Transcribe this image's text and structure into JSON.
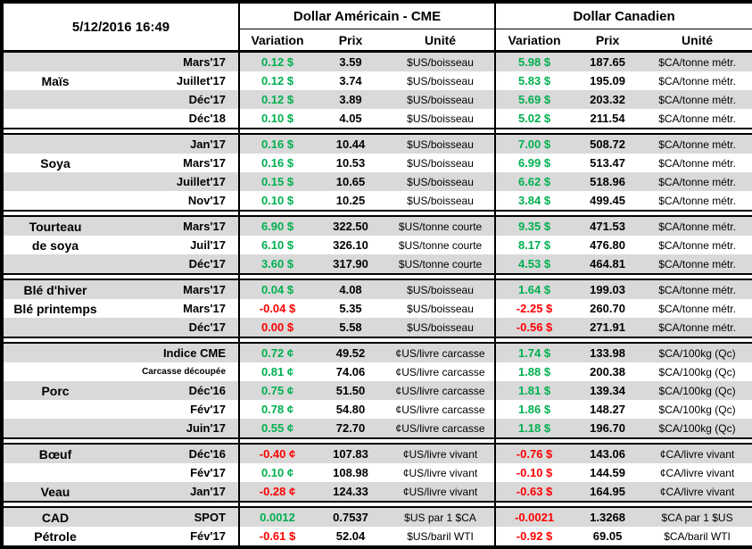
{
  "header": {
    "timestamp": "5/12/2016 16:49",
    "us_group_title": "Dollar Américain - CME",
    "ca_group_title": "Dollar Canadien",
    "columns": [
      "Variation",
      "Prix",
      "Unité"
    ]
  },
  "colors": {
    "positive": "#00B050",
    "negative": "#FF0000",
    "row_stripe": "#D9D9D9",
    "border": "#000000"
  },
  "groups": [
    {
      "commodity": "Maïs",
      "rows": [
        {
          "name": "",
          "month": "Mars'17",
          "us_variation": "0.12 $",
          "us_trend": "pos",
          "us_price": "3.59",
          "us_unit": "$US/boisseau",
          "ca_variation": "5.98 $",
          "ca_trend": "pos",
          "ca_price": "187.65",
          "ca_unit": "$CA/tonne métr."
        },
        {
          "name": "Maïs",
          "month": "Juillet'17",
          "us_variation": "0.12 $",
          "us_trend": "pos",
          "us_price": "3.74",
          "us_unit": "$US/boisseau",
          "ca_variation": "5.83 $",
          "ca_trend": "pos",
          "ca_price": "195.09",
          "ca_unit": "$CA/tonne métr."
        },
        {
          "name": "",
          "month": "Déc'17",
          "us_variation": "0.12 $",
          "us_trend": "pos",
          "us_price": "3.89",
          "us_unit": "$US/boisseau",
          "ca_variation": "5.69 $",
          "ca_trend": "pos",
          "ca_price": "203.32",
          "ca_unit": "$CA/tonne métr."
        },
        {
          "name": "",
          "month": "Déc'18",
          "us_variation": "0.10 $",
          "us_trend": "pos",
          "us_price": "4.05",
          "us_unit": "$US/boisseau",
          "ca_variation": "5.02 $",
          "ca_trend": "pos",
          "ca_price": "211.54",
          "ca_unit": "$CA/tonne métr."
        }
      ]
    },
    {
      "commodity": "Soya",
      "rows": [
        {
          "name": "",
          "month": "Jan'17",
          "us_variation": "0.16 $",
          "us_trend": "pos",
          "us_price": "10.44",
          "us_unit": "$US/boisseau",
          "ca_variation": "7.00 $",
          "ca_trend": "pos",
          "ca_price": "508.72",
          "ca_unit": "$CA/tonne métr."
        },
        {
          "name": "Soya",
          "month": "Mars'17",
          "us_variation": "0.16 $",
          "us_trend": "pos",
          "us_price": "10.53",
          "us_unit": "$US/boisseau",
          "ca_variation": "6.99 $",
          "ca_trend": "pos",
          "ca_price": "513.47",
          "ca_unit": "$CA/tonne métr."
        },
        {
          "name": "",
          "month": "Juillet'17",
          "us_variation": "0.15 $",
          "us_trend": "pos",
          "us_price": "10.65",
          "us_unit": "$US/boisseau",
          "ca_variation": "6.62 $",
          "ca_trend": "pos",
          "ca_price": "518.96",
          "ca_unit": "$CA/tonne métr."
        },
        {
          "name": "",
          "month": "Nov'17",
          "us_variation": "0.10 $",
          "us_trend": "pos",
          "us_price": "10.25",
          "us_unit": "$US/boisseau",
          "ca_variation": "3.84 $",
          "ca_trend": "pos",
          "ca_price": "499.45",
          "ca_unit": "$CA/tonne métr."
        }
      ]
    },
    {
      "commodity": "Tourteau de soya",
      "rows": [
        {
          "name": "Tourteau",
          "month": "Mars'17",
          "us_variation": "6.90 $",
          "us_trend": "pos",
          "us_price": "322.50",
          "us_unit": "$US/tonne courte",
          "ca_variation": "9.35 $",
          "ca_trend": "pos",
          "ca_price": "471.53",
          "ca_unit": "$CA/tonne métr."
        },
        {
          "name": "de soya",
          "month": "Juil'17",
          "us_variation": "6.10 $",
          "us_trend": "pos",
          "us_price": "326.10",
          "us_unit": "$US/tonne courte",
          "ca_variation": "8.17 $",
          "ca_trend": "pos",
          "ca_price": "476.80",
          "ca_unit": "$CA/tonne métr."
        },
        {
          "name": "",
          "month": "Déc'17",
          "us_variation": "3.60 $",
          "us_trend": "pos",
          "us_price": "317.90",
          "us_unit": "$US/tonne courte",
          "ca_variation": "4.53 $",
          "ca_trend": "pos",
          "ca_price": "464.81",
          "ca_unit": "$CA/tonne métr."
        }
      ]
    },
    {
      "commodity": "Blé",
      "rows": [
        {
          "name": "Blé d'hiver",
          "month": "Mars'17",
          "us_variation": "0.04 $",
          "us_trend": "pos",
          "us_price": "4.08",
          "us_unit": "$US/boisseau",
          "ca_variation": "1.64 $",
          "ca_trend": "pos",
          "ca_price": "199.03",
          "ca_unit": "$CA/tonne métr."
        },
        {
          "name": "Blé printemps",
          "month": "Mars'17",
          "us_variation": "-0.04 $",
          "us_trend": "neg",
          "us_price": "5.35",
          "us_unit": "$US/boisseau",
          "ca_variation": "-2.25 $",
          "ca_trend": "neg",
          "ca_price": "260.70",
          "ca_unit": "$CA/tonne métr."
        },
        {
          "name": "",
          "month": "Déc'17",
          "us_variation": "0.00 $",
          "us_trend": "neg",
          "us_price": "5.58",
          "us_unit": "$US/boisseau",
          "ca_variation": "-0.56 $",
          "ca_trend": "neg",
          "ca_price": "271.91",
          "ca_unit": "$CA/tonne métr."
        }
      ]
    },
    {
      "commodity": "Porc",
      "rows": [
        {
          "name": "",
          "month": "Indice CME",
          "us_variation": "0.72 ¢",
          "us_trend": "pos",
          "us_price": "49.52",
          "us_unit": "¢US/livre carcasse",
          "ca_variation": "1.74 $",
          "ca_trend": "pos",
          "ca_price": "133.98",
          "ca_unit": "$CA/100kg (Qc)"
        },
        {
          "name": "",
          "month": "Carcasse découpée",
          "month_small": true,
          "us_variation": "0.81 ¢",
          "us_trend": "pos",
          "us_price": "74.06",
          "us_unit": "¢US/livre carcasse",
          "ca_variation": "1.88 $",
          "ca_trend": "pos",
          "ca_price": "200.38",
          "ca_unit": "$CA/100kg (Qc)"
        },
        {
          "name": "Porc",
          "month": "Déc'16",
          "us_variation": "0.75 ¢",
          "us_trend": "pos",
          "us_price": "51.50",
          "us_unit": "¢US/livre carcasse",
          "ca_variation": "1.81 $",
          "ca_trend": "pos",
          "ca_price": "139.34",
          "ca_unit": "$CA/100kg (Qc)"
        },
        {
          "name": "",
          "month": "Fév'17",
          "us_variation": "0.78 ¢",
          "us_trend": "pos",
          "us_price": "54.80",
          "us_unit": "¢US/livre carcasse",
          "ca_variation": "1.86 $",
          "ca_trend": "pos",
          "ca_price": "148.27",
          "ca_unit": "$CA/100kg (Qc)"
        },
        {
          "name": "",
          "month": "Juin'17",
          "us_variation": "0.55 ¢",
          "us_trend": "pos",
          "us_price": "72.70",
          "us_unit": "¢US/livre carcasse",
          "ca_variation": "1.18 $",
          "ca_trend": "pos",
          "ca_price": "196.70",
          "ca_unit": "$CA/100kg (Qc)"
        }
      ]
    },
    {
      "commodity": "Bœuf / Veau",
      "rows": [
        {
          "name": "Bœuf",
          "month": "Déc'16",
          "us_variation": "-0.40 ¢",
          "us_trend": "neg",
          "us_price": "107.83",
          "us_unit": "¢US/livre vivant",
          "ca_variation": "-0.76 $",
          "ca_trend": "neg",
          "ca_price": "143.06",
          "ca_unit": "¢CA/livre vivant"
        },
        {
          "name": "",
          "month": "Fév'17",
          "us_variation": "0.10 ¢",
          "us_trend": "pos",
          "us_price": "108.98",
          "us_unit": "¢US/livre vivant",
          "ca_variation": "-0.10 $",
          "ca_trend": "neg",
          "ca_price": "144.59",
          "ca_unit": "¢CA/livre vivant"
        },
        {
          "name": "Veau",
          "month": "Jan'17",
          "us_variation": "-0.28 ¢",
          "us_trend": "neg",
          "us_price": "124.33",
          "us_unit": "¢US/livre vivant",
          "ca_variation": "-0.63 $",
          "ca_trend": "neg",
          "ca_price": "164.95",
          "ca_unit": "¢CA/livre vivant"
        }
      ]
    },
    {
      "commodity": "CAD / Pétrole",
      "rows": [
        {
          "name": "CAD",
          "month": "SPOT",
          "us_variation": "0.0012",
          "us_trend": "pos",
          "us_price": "0.7537",
          "us_unit": "$US par 1 $CA",
          "ca_variation": "-0.0021",
          "ca_trend": "neg",
          "ca_price": "1.3268",
          "ca_unit": "$CA par 1 $US"
        },
        {
          "name": "Pétrole",
          "month": "Fév'17",
          "us_variation": "-0.61 $",
          "us_trend": "neg",
          "us_price": "52.04",
          "us_unit": "$US/baril WTI",
          "ca_variation": "-0.92 $",
          "ca_trend": "neg",
          "ca_price": "69.05",
          "ca_unit": "$CA/baril WTI"
        }
      ]
    }
  ]
}
